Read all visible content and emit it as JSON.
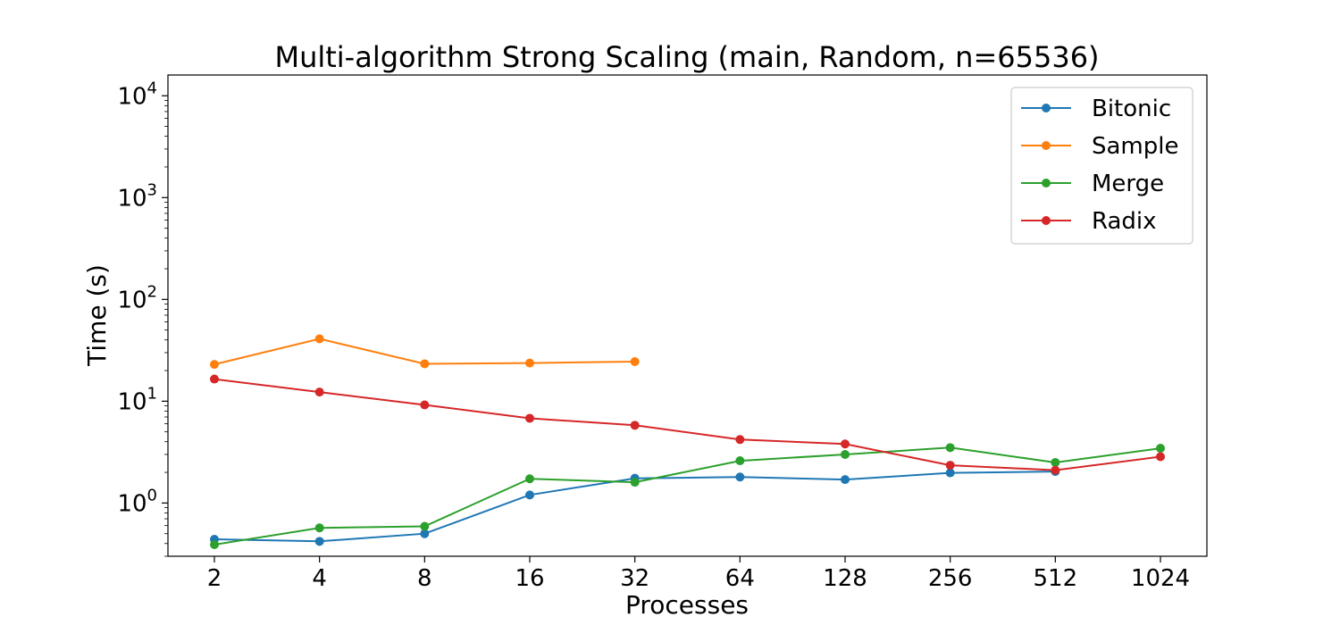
{
  "chart_data": {
    "type": "line",
    "title": "Multi-algorithm Strong Scaling (main, Random, n=65536)",
    "xlabel": "Processes",
    "ylabel": "Time (s)",
    "x_scale": "log2",
    "y_scale": "log10",
    "ylim": [
      0.3,
      16000
    ],
    "y_ticks": [
      {
        "base": "10",
        "exp": "0",
        "value": 1
      },
      {
        "base": "10",
        "exp": "1",
        "value": 10
      },
      {
        "base": "10",
        "exp": "2",
        "value": 100
      },
      {
        "base": "10",
        "exp": "3",
        "value": 1000
      },
      {
        "base": "10",
        "exp": "4",
        "value": 10000
      }
    ],
    "categories": [
      "2",
      "4",
      "8",
      "16",
      "32",
      "64",
      "128",
      "256",
      "512",
      "1024"
    ],
    "x": [
      2,
      4,
      8,
      16,
      32,
      64,
      128,
      256,
      512,
      1024
    ],
    "grid": false,
    "legend_position": "top-right",
    "series": [
      {
        "name": "Bitonic",
        "color": "#1f77b4",
        "values": [
          0.44,
          0.42,
          0.5,
          1.2,
          1.75,
          1.8,
          1.7,
          1.98,
          2.04,
          null
        ]
      },
      {
        "name": "Sample",
        "color": "#ff7f0e",
        "values": [
          23,
          41,
          23.3,
          23.7,
          24.5,
          null,
          null,
          null,
          null,
          null
        ]
      },
      {
        "name": "Merge",
        "color": "#2ca02c",
        "values": [
          0.39,
          0.57,
          0.59,
          1.73,
          1.6,
          2.6,
          3.0,
          3.5,
          2.5,
          3.45
        ]
      },
      {
        "name": "Radix",
        "color": "#d62728",
        "values": [
          16.5,
          12.3,
          9.2,
          6.8,
          5.8,
          4.2,
          3.8,
          2.35,
          2.1,
          2.85
        ]
      }
    ]
  }
}
